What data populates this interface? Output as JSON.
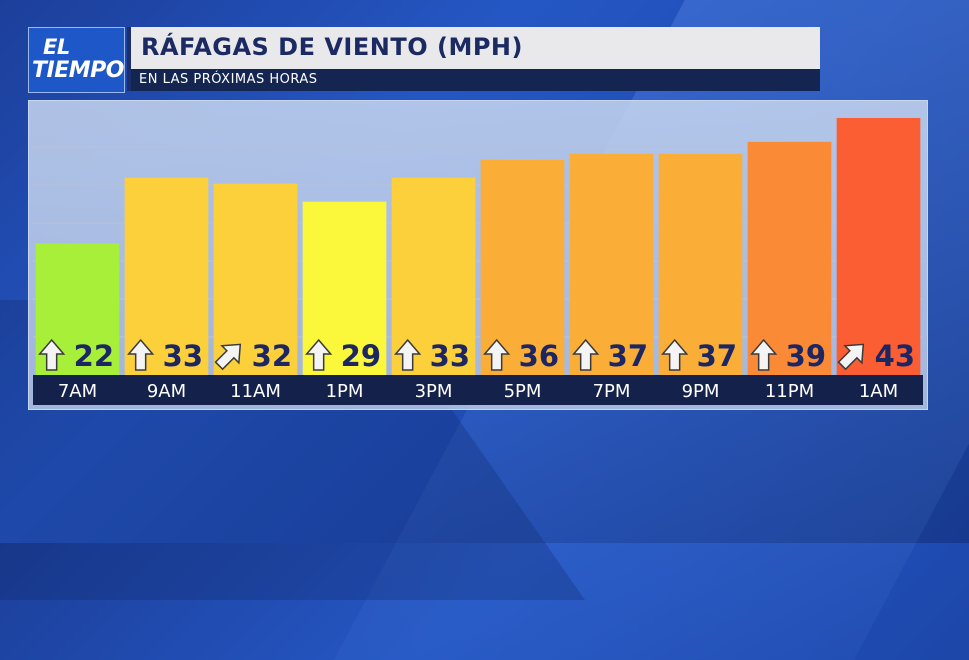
{
  "logo": {
    "line1": "EL",
    "line2": "TIEMPO"
  },
  "header": {
    "title": "RÁFAGAS DE VIENTO (MPH)",
    "subtitle": "EN LAS PRÓXIMAS HORAS"
  },
  "chart_data": {
    "type": "bar",
    "title": "RÁFAGAS DE VIENTO (MPH)",
    "categories": [
      "7AM",
      "9AM",
      "11AM",
      "1PM",
      "3PM",
      "5PM",
      "7PM",
      "9PM",
      "11PM",
      "1AM"
    ],
    "values": [
      22,
      33,
      32,
      29,
      33,
      36,
      37,
      37,
      39,
      43
    ],
    "wind_direction_icons": [
      "arrow-up-icon",
      "arrow-up-icon",
      "arrow-up-right-icon",
      "arrow-up-icon",
      "arrow-up-icon",
      "arrow-up-icon",
      "arrow-up-icon",
      "arrow-up-icon",
      "arrow-up-icon",
      "arrow-up-right-icon"
    ],
    "bar_colors": [
      "#a8ef3a",
      "#fcd03a",
      "#fcd03a",
      "#fbf73a",
      "#fcd03a",
      "#fbae37",
      "#fbae37",
      "#fbae37",
      "#fb8a36",
      "#fb5e32"
    ],
    "ylim": [
      0,
      44
    ],
    "grid": true
  }
}
